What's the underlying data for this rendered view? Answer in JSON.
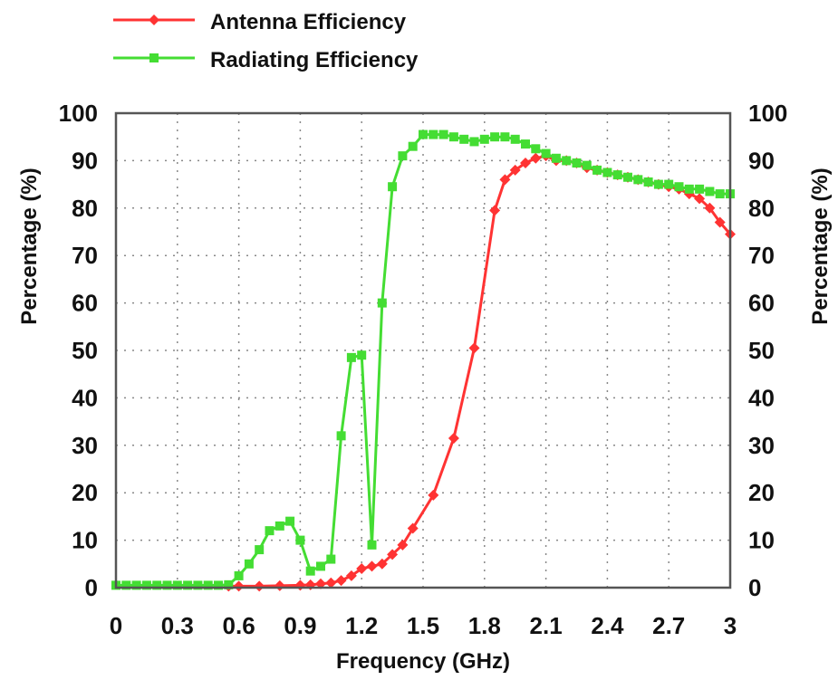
{
  "chart_data": {
    "type": "line",
    "title": "",
    "xlabel": "Frequency (GHz)",
    "ylabel_left": "Percentage (%)",
    "ylabel_right": "Percentage (%)",
    "xlim": [
      0,
      3
    ],
    "ylim": [
      0,
      100
    ],
    "x_ticks": [
      "0",
      "0.3",
      "0.6",
      "0.9",
      "1.2",
      "1.5",
      "1.8",
      "2.1",
      "2.4",
      "2.7",
      "3"
    ],
    "y_ticks": [
      "0",
      "10",
      "20",
      "30",
      "40",
      "50",
      "60",
      "70",
      "80",
      "90",
      "100"
    ],
    "grid": true,
    "legend_position": "top-left outside",
    "series": [
      {
        "name": "Antenna Efficiency",
        "color": "#ff3333",
        "marker": "diamond",
        "points": [
          [
            0.55,
            0.3
          ],
          [
            0.6,
            0.3
          ],
          [
            0.7,
            0.3
          ],
          [
            0.8,
            0.4
          ],
          [
            0.9,
            0.5
          ],
          [
            0.95,
            0.6
          ],
          [
            1.0,
            0.8
          ],
          [
            1.05,
            1.0
          ],
          [
            1.1,
            1.5
          ],
          [
            1.15,
            2.5
          ],
          [
            1.2,
            4.0
          ],
          [
            1.25,
            4.5
          ],
          [
            1.3,
            5.0
          ],
          [
            1.35,
            7.0
          ],
          [
            1.4,
            9.0
          ],
          [
            1.45,
            12.5
          ],
          [
            1.55,
            19.5
          ],
          [
            1.65,
            31.5
          ],
          [
            1.75,
            50.5
          ],
          [
            1.85,
            79.5
          ],
          [
            1.9,
            86.0
          ],
          [
            1.95,
            88.0
          ],
          [
            2.0,
            89.5
          ],
          [
            2.05,
            90.5
          ],
          [
            2.1,
            91.0
          ],
          [
            2.15,
            90.0
          ],
          [
            2.2,
            90.0
          ],
          [
            2.25,
            89.5
          ],
          [
            2.3,
            88.5
          ],
          [
            2.35,
            88.0
          ],
          [
            2.4,
            87.5
          ],
          [
            2.45,
            87.0
          ],
          [
            2.5,
            86.5
          ],
          [
            2.55,
            86.0
          ],
          [
            2.6,
            85.5
          ],
          [
            2.65,
            85.0
          ],
          [
            2.7,
            84.5
          ],
          [
            2.75,
            84.0
          ],
          [
            2.8,
            83.0
          ],
          [
            2.85,
            82.0
          ],
          [
            2.9,
            80.0
          ],
          [
            2.95,
            77.0
          ],
          [
            3.0,
            74.5
          ]
        ]
      },
      {
        "name": "Radiating Efficiency",
        "color": "#44dd33",
        "marker": "square",
        "points": [
          [
            0.0,
            0.5
          ],
          [
            0.05,
            0.5
          ],
          [
            0.1,
            0.5
          ],
          [
            0.15,
            0.5
          ],
          [
            0.2,
            0.5
          ],
          [
            0.25,
            0.5
          ],
          [
            0.3,
            0.5
          ],
          [
            0.35,
            0.5
          ],
          [
            0.4,
            0.5
          ],
          [
            0.45,
            0.5
          ],
          [
            0.5,
            0.5
          ],
          [
            0.55,
            0.6
          ],
          [
            0.6,
            2.5
          ],
          [
            0.65,
            5.0
          ],
          [
            0.7,
            8.0
          ],
          [
            0.75,
            12.0
          ],
          [
            0.8,
            13.0
          ],
          [
            0.85,
            14.0
          ],
          [
            0.9,
            10.0
          ],
          [
            0.95,
            3.5
          ],
          [
            1.0,
            4.5
          ],
          [
            1.05,
            6.0
          ],
          [
            1.1,
            32.0
          ],
          [
            1.15,
            48.5
          ],
          [
            1.2,
            49.0
          ],
          [
            1.25,
            9.0
          ],
          [
            1.3,
            60.0
          ],
          [
            1.35,
            84.5
          ],
          [
            1.4,
            91.0
          ],
          [
            1.45,
            93.0
          ],
          [
            1.5,
            95.5
          ],
          [
            1.55,
            95.5
          ],
          [
            1.6,
            95.5
          ],
          [
            1.65,
            95.0
          ],
          [
            1.7,
            94.5
          ],
          [
            1.75,
            94.0
          ],
          [
            1.8,
            94.5
          ],
          [
            1.85,
            95.0
          ],
          [
            1.9,
            95.0
          ],
          [
            1.95,
            94.5
          ],
          [
            2.0,
            93.5
          ],
          [
            2.05,
            92.5
          ],
          [
            2.1,
            91.5
          ],
          [
            2.15,
            90.5
          ],
          [
            2.2,
            90.0
          ],
          [
            2.25,
            89.5
          ],
          [
            2.3,
            89.0
          ],
          [
            2.35,
            88.0
          ],
          [
            2.4,
            87.5
          ],
          [
            2.45,
            87.0
          ],
          [
            2.5,
            86.5
          ],
          [
            2.55,
            86.0
          ],
          [
            2.6,
            85.5
          ],
          [
            2.65,
            85.0
          ],
          [
            2.7,
            85.0
          ],
          [
            2.75,
            84.5
          ],
          [
            2.8,
            84.0
          ],
          [
            2.85,
            84.0
          ],
          [
            2.9,
            83.5
          ],
          [
            2.95,
            83.0
          ],
          [
            3.0,
            83.0
          ]
        ]
      }
    ]
  }
}
